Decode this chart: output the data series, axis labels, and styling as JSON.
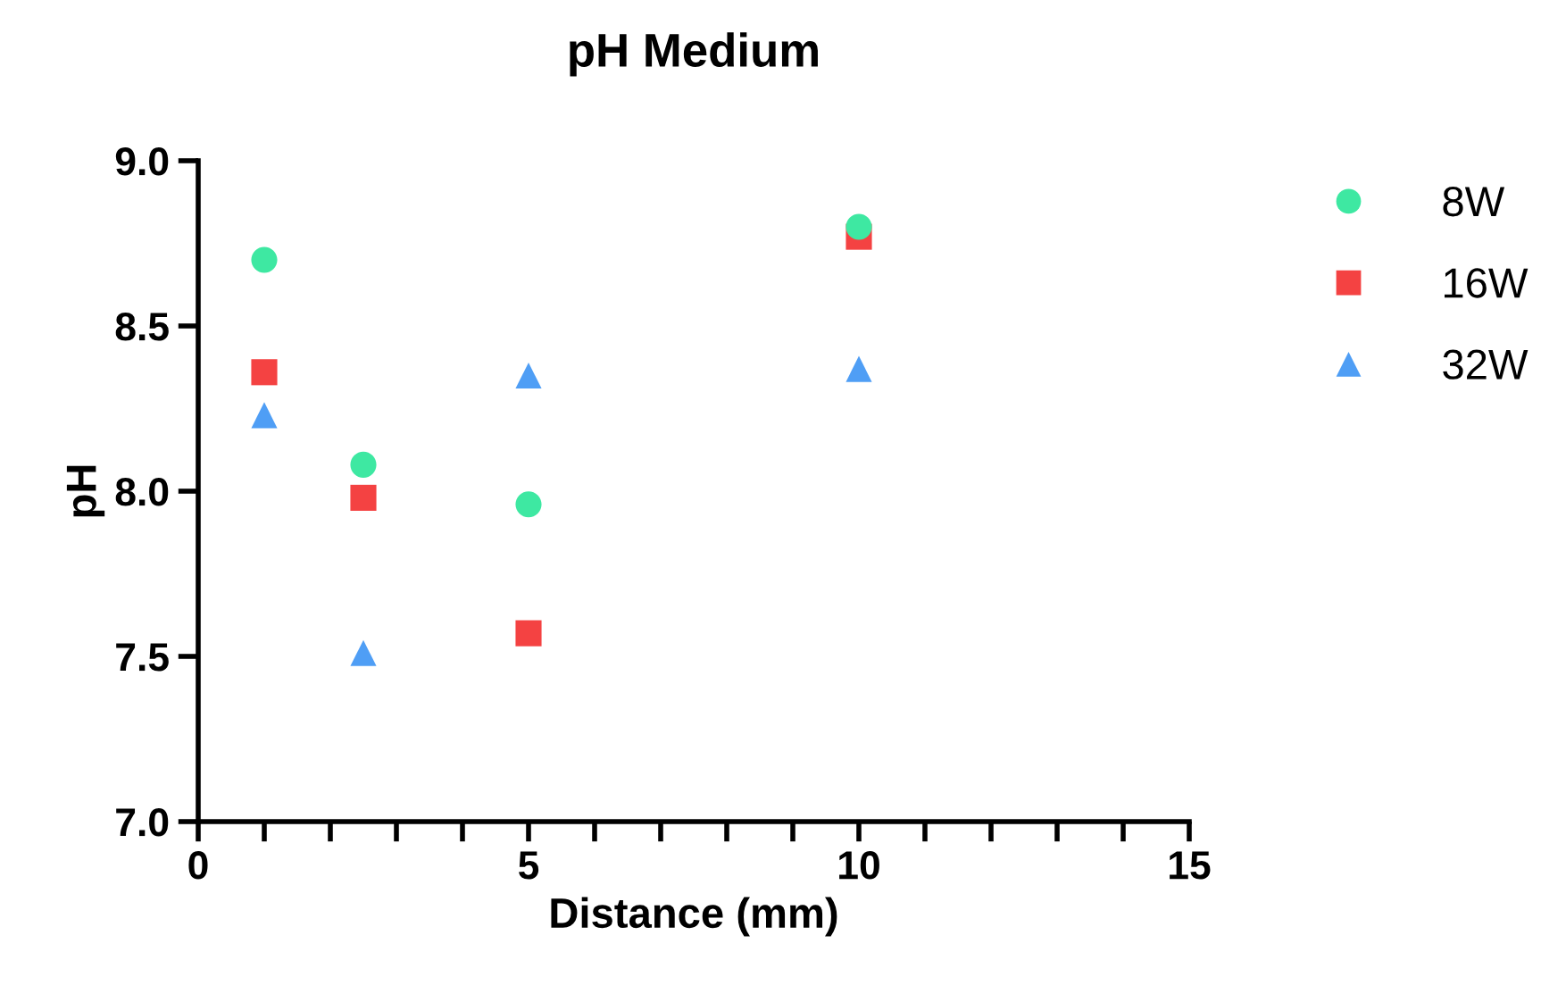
{
  "chart_data": {
    "type": "scatter",
    "title": "pH Medium",
    "xlabel": "Distance (mm)",
    "ylabel": "pH",
    "x": [
      1,
      2.5,
      5,
      10
    ],
    "series": [
      {
        "name": "8W",
        "color": "#3ee8a2",
        "marker": "circle",
        "values": [
          8.7,
          8.08,
          7.96,
          8.8
        ]
      },
      {
        "name": "16W",
        "color": "#f44242",
        "marker": "square",
        "values": [
          8.36,
          7.98,
          7.57,
          8.77
        ]
      },
      {
        "name": "32W",
        "color": "#4f9ef5",
        "marker": "triangle",
        "values": [
          8.23,
          7.51,
          8.35,
          8.37
        ]
      }
    ],
    "xlim": [
      0,
      15
    ],
    "xticks": [
      0,
      {
        "value": 1,
        "label": null
      },
      {
        "value": 2,
        "label": null
      },
      {
        "value": 3,
        "label": null
      },
      {
        "value": 4,
        "label": null
      },
      5,
      {
        "value": 6,
        "label": null
      },
      {
        "value": 7,
        "label": null
      },
      {
        "value": 8,
        "label": null
      },
      {
        "value": 9,
        "label": null
      },
      10,
      {
        "value": 11,
        "label": null
      },
      {
        "value": 12,
        "label": null
      },
      {
        "value": 13,
        "label": null
      },
      {
        "value": 14,
        "label": null
      },
      15
    ],
    "ylim": [
      7.0,
      9.0
    ],
    "yticks": [
      {
        "value": 7.0,
        "label": "7.0"
      },
      {
        "value": 7.5,
        "label": "7.5"
      },
      {
        "value": 8.0,
        "label": "8.0"
      },
      {
        "value": 8.5,
        "label": "8.5"
      },
      {
        "value": 9.0,
        "label": "9.0"
      }
    ],
    "grid": false,
    "legend": "top right"
  }
}
